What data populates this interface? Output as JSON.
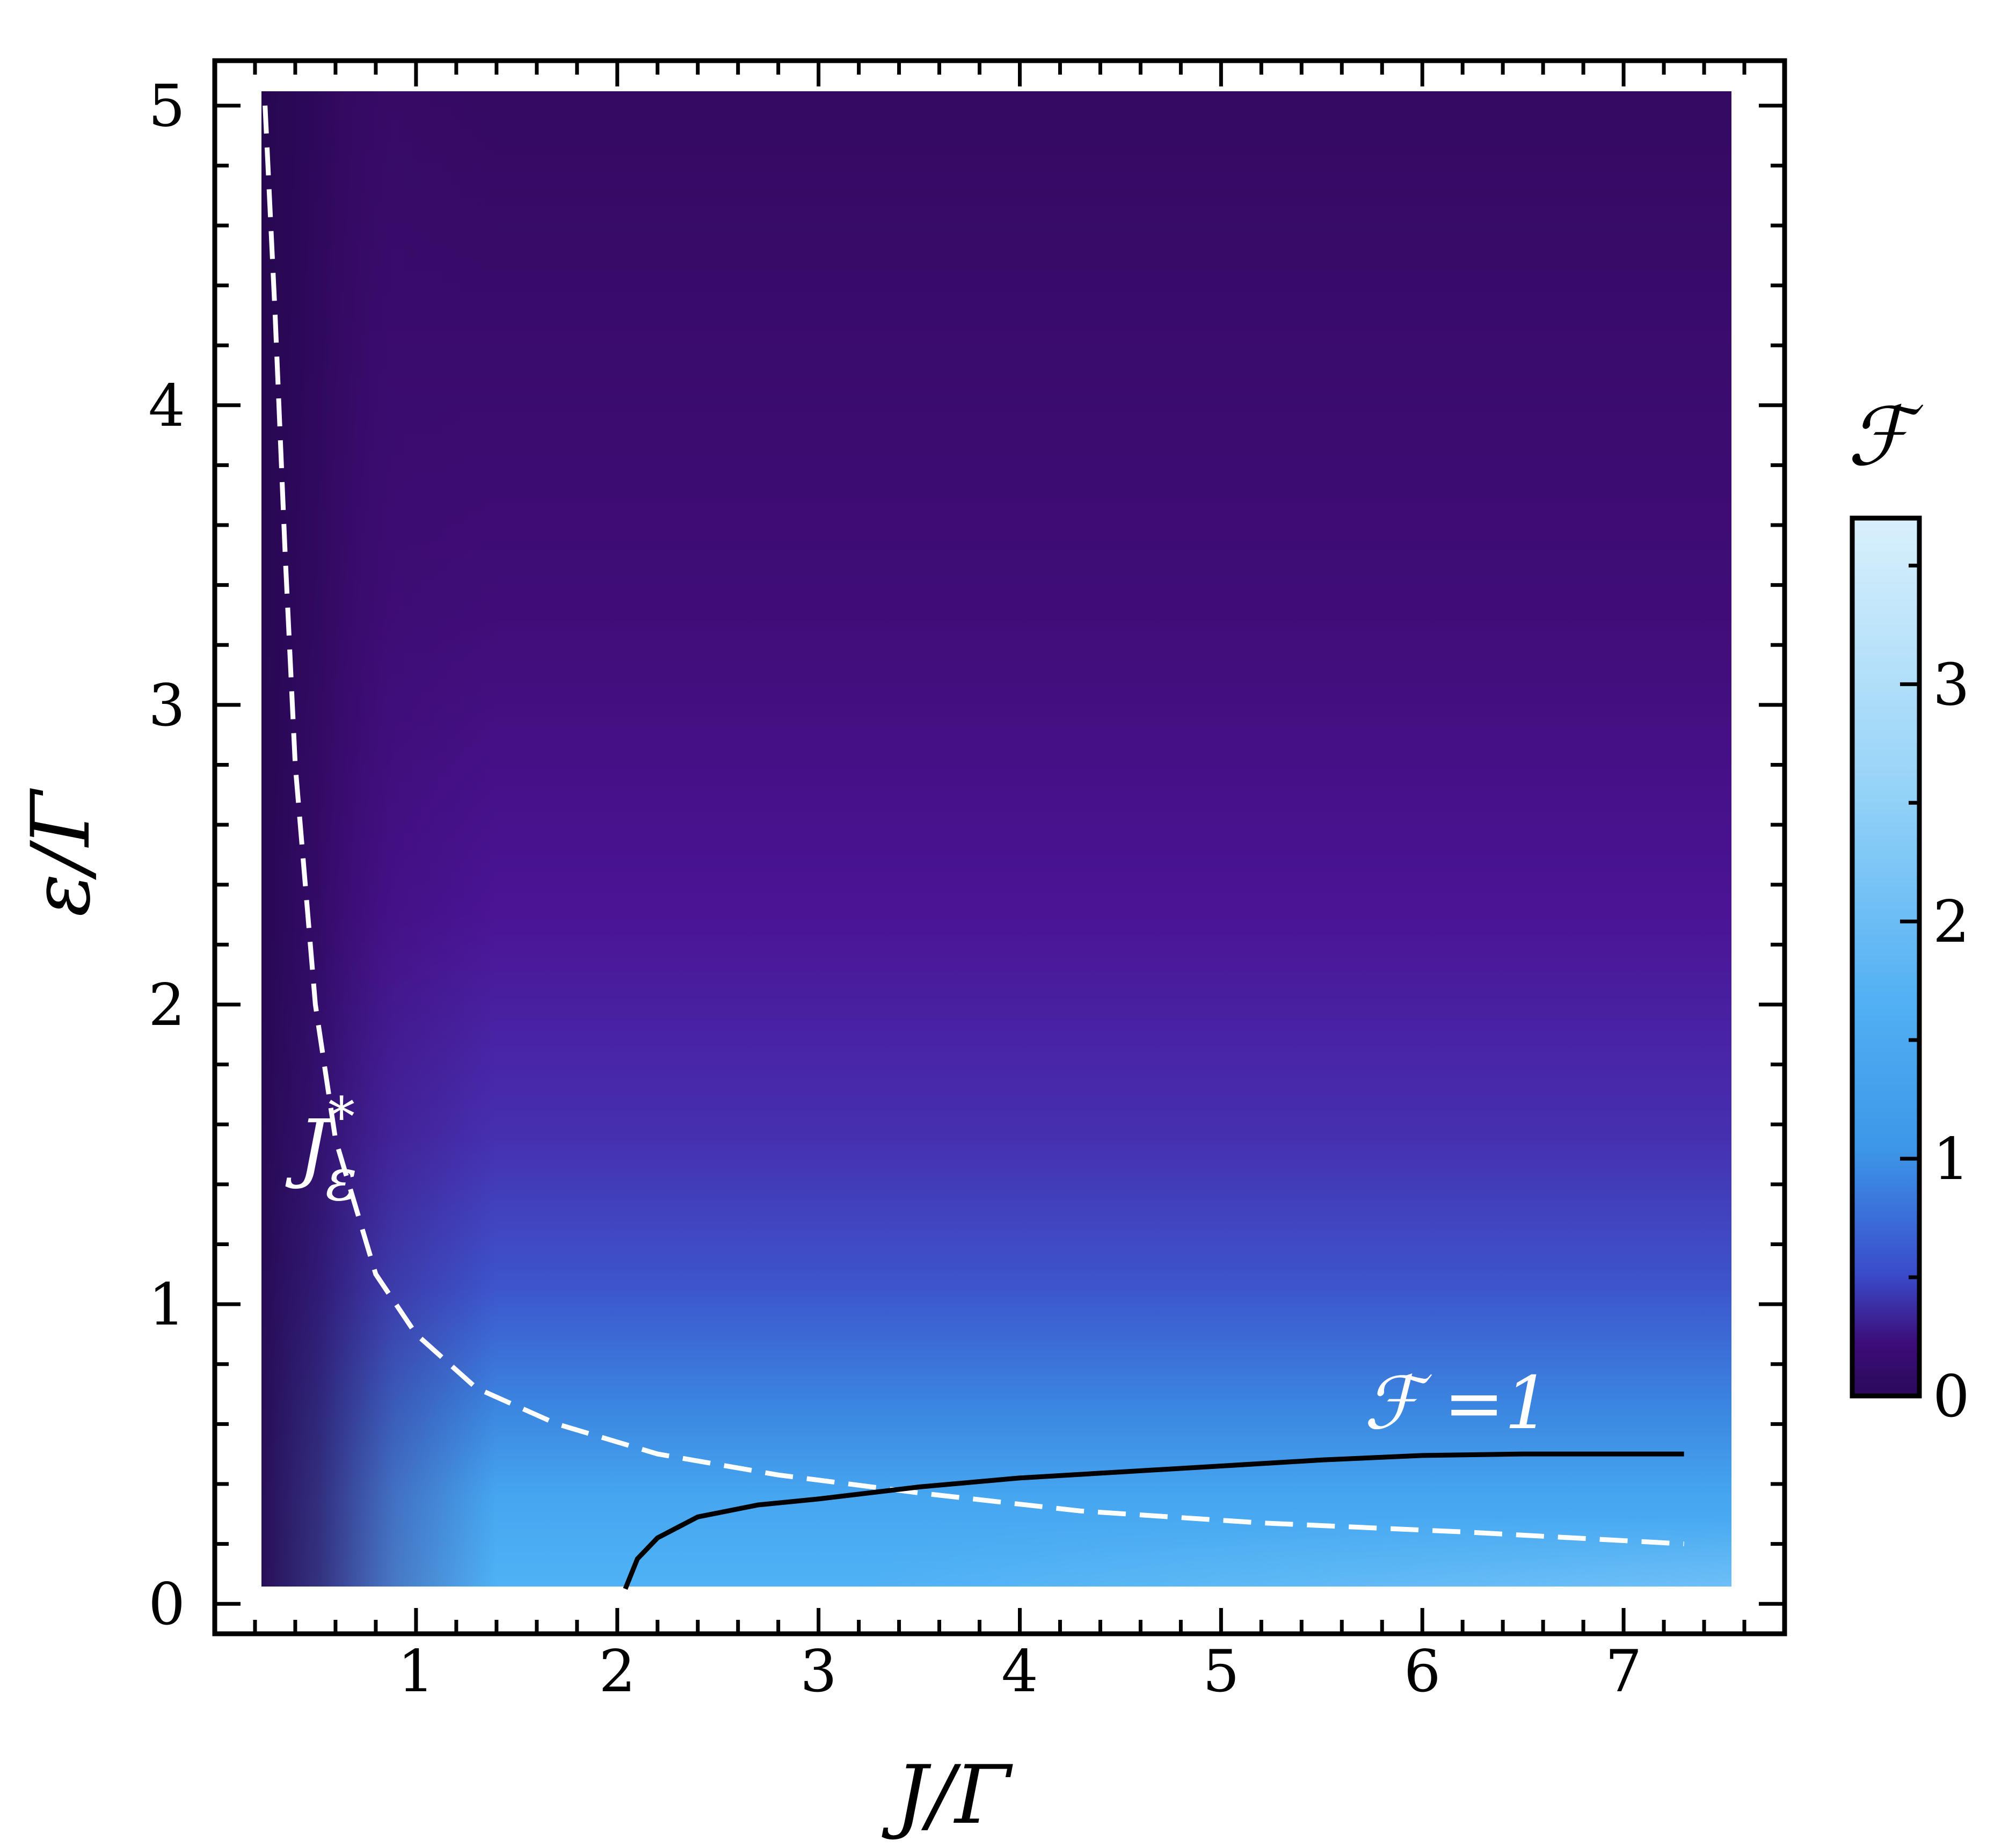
{
  "chart_data": {
    "type": "heatmap",
    "title": "",
    "xlabel": "J/Γ",
    "ylabel": "ε/Γ",
    "xlim": [
      0,
      7.8
    ],
    "ylim": [
      -0.1,
      5.15
    ],
    "x_ticks": [
      "1",
      "2",
      "3",
      "4",
      "5",
      "6",
      "7"
    ],
    "y_ticks": [
      "0",
      "1",
      "2",
      "3",
      "4",
      "5"
    ],
    "colorbar": {
      "label": "ℱ",
      "range": [
        0,
        3.7
      ],
      "ticks": [
        "0",
        "1",
        "2",
        "3"
      ],
      "colormap": [
        "#2a0a5a",
        "#3d0c70",
        "#4a1090",
        "#3a50d0",
        "#3f9ae8",
        "#4db0f5",
        "#bfe6fb",
        "#dff2fc"
      ]
    },
    "grid": false,
    "series": [
      {
        "name": "J*_ε",
        "style": "dashed",
        "color": "#ffffff",
        "x": [
          0.25,
          0.3,
          0.35,
          0.4,
          0.5,
          0.6,
          0.8,
          1.0,
          1.3,
          1.7,
          2.2,
          2.8,
          3.5,
          4.3,
          5.2,
          6.2,
          7.3
        ],
        "y": [
          5.0,
          4.3,
          3.5,
          2.8,
          2.0,
          1.55,
          1.1,
          0.9,
          0.72,
          0.6,
          0.5,
          0.43,
          0.37,
          0.31,
          0.27,
          0.24,
          0.2
        ]
      },
      {
        "name": "ℱ=1",
        "style": "solid",
        "color": "#000000",
        "x": [
          2.04,
          2.1,
          2.2,
          2.4,
          2.7,
          3.0,
          3.5,
          4.0,
          4.5,
          5.0,
          5.5,
          6.0,
          6.5,
          7.3
        ],
        "y": [
          0.05,
          0.15,
          0.22,
          0.29,
          0.33,
          0.35,
          0.39,
          0.42,
          0.44,
          0.46,
          0.48,
          0.495,
          0.5,
          0.5
        ]
      }
    ],
    "annotations": [
      {
        "text_main": "J",
        "text_sub": "ε",
        "text_sup": "*",
        "x": 0.6,
        "y": 1.45
      },
      {
        "text": "ℱ =1",
        "x": 6.05,
        "y": 0.65
      }
    ]
  }
}
